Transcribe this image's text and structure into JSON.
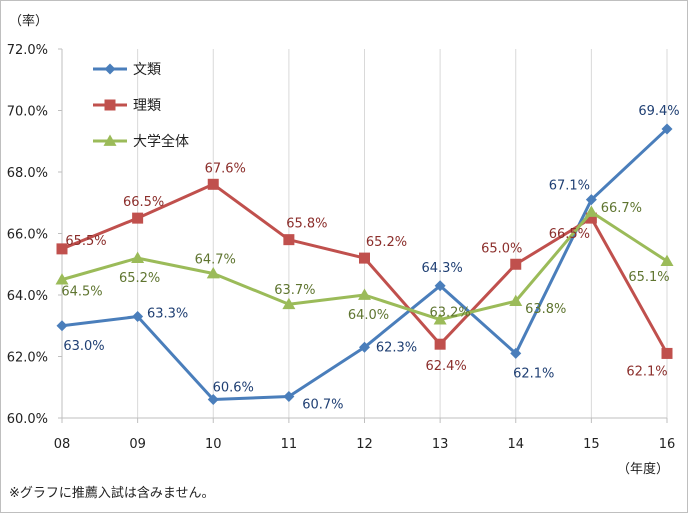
{
  "chart_data": {
    "type": "line",
    "title": "",
    "ylabel": "（率）",
    "xlabel": "（年度）",
    "note": "※グラフに推薦入試は含みません。",
    "categories": [
      "08",
      "09",
      "10",
      "11",
      "12",
      "13",
      "14",
      "15",
      "16"
    ],
    "ylim": [
      60.0,
      72.0
    ],
    "yticks": [
      "60.0%",
      "62.0%",
      "64.0%",
      "66.0%",
      "68.0%",
      "70.0%",
      "72.0%"
    ],
    "grid": "vertical",
    "legend": "top-left",
    "series": [
      {
        "name": "文類",
        "color": "#4a7ebb",
        "label_color": "#1f3f73",
        "marker": "diamond",
        "values": [
          63.0,
          63.3,
          60.6,
          60.7,
          62.3,
          64.3,
          62.1,
          67.1,
          69.4
        ],
        "labels": [
          "63.0%",
          "63.3%",
          "60.6%",
          "60.7%",
          "62.3%",
          "64.3%",
          "62.1%",
          "67.1%",
          "69.4%"
        ]
      },
      {
        "name": "理類",
        "color": "#c0504d",
        "label_color": "#8b2e2b",
        "marker": "square",
        "values": [
          65.5,
          66.5,
          67.6,
          65.8,
          65.2,
          62.4,
          65.0,
          66.5,
          62.1
        ],
        "labels": [
          "65.5%",
          "66.5%",
          "67.6%",
          "65.8%",
          "65.2%",
          "62.4%",
          "65.0%",
          "66.5%",
          "62.1%"
        ]
      },
      {
        "name": "大学全体",
        "color": "#9bbb59",
        "label_color": "#5f7530",
        "marker": "triangle",
        "values": [
          64.5,
          65.2,
          64.7,
          63.7,
          64.0,
          63.2,
          63.8,
          66.7,
          65.1
        ],
        "labels": [
          "64.5%",
          "65.2%",
          "64.7%",
          "63.7%",
          "64.0%",
          "63.2%",
          "63.8%",
          "66.7%",
          "65.1%"
        ]
      }
    ]
  }
}
